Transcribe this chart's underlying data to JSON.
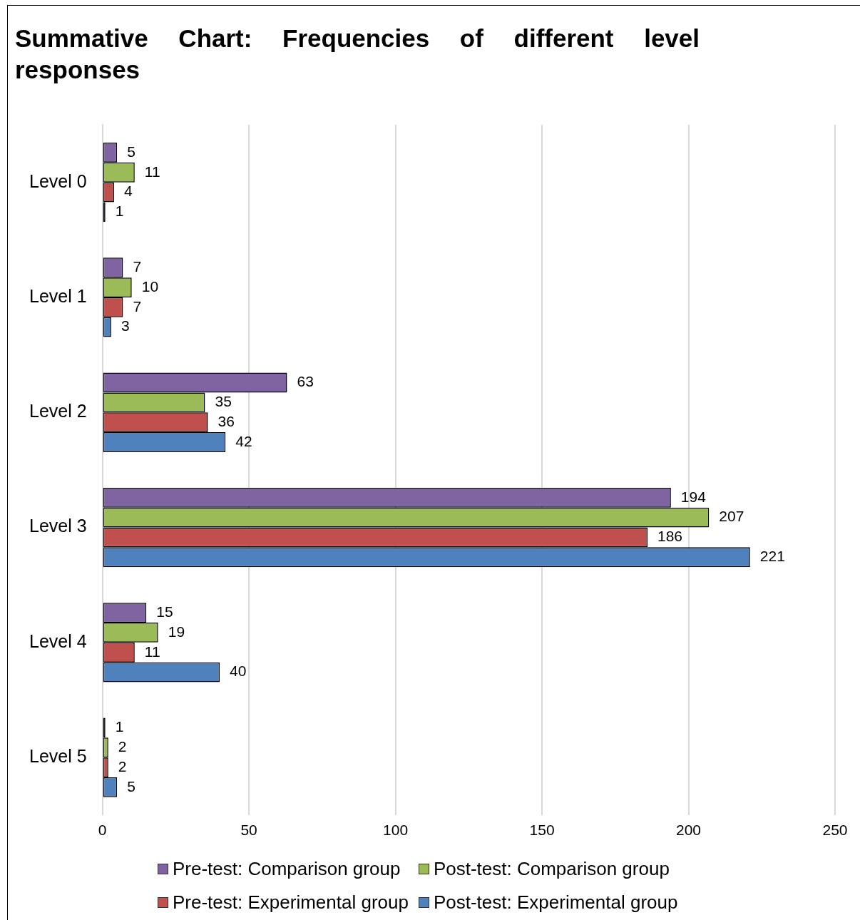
{
  "chart_data": {
    "type": "bar",
    "orientation": "horizontal",
    "title": "Summative Chart:  Frequencies of different level responses",
    "categories": [
      "Level 0",
      "Level 1",
      "Level 2",
      "Level 3",
      "Level 4",
      "Level 5"
    ],
    "series": [
      {
        "name": "Pre-test: Comparison group",
        "color": "#8064a2",
        "values": [
          5,
          7,
          63,
          194,
          15,
          1
        ]
      },
      {
        "name": "Post-test: Comparison group",
        "color": "#9bbb59",
        "values": [
          11,
          10,
          35,
          207,
          19,
          2
        ]
      },
      {
        "name": "Pre-test: Experimental group",
        "color": "#c0504d",
        "values": [
          4,
          7,
          36,
          186,
          11,
          2
        ]
      },
      {
        "name": "Post-test: Experimental group",
        "color": "#4f81bd",
        "values": [
          1,
          3,
          42,
          221,
          40,
          5
        ]
      }
    ],
    "xlim": [
      0,
      250
    ],
    "xticks": [
      0,
      50,
      100,
      150,
      200,
      250
    ],
    "grid": "x",
    "legend": "bottom",
    "data_labels": true
  }
}
